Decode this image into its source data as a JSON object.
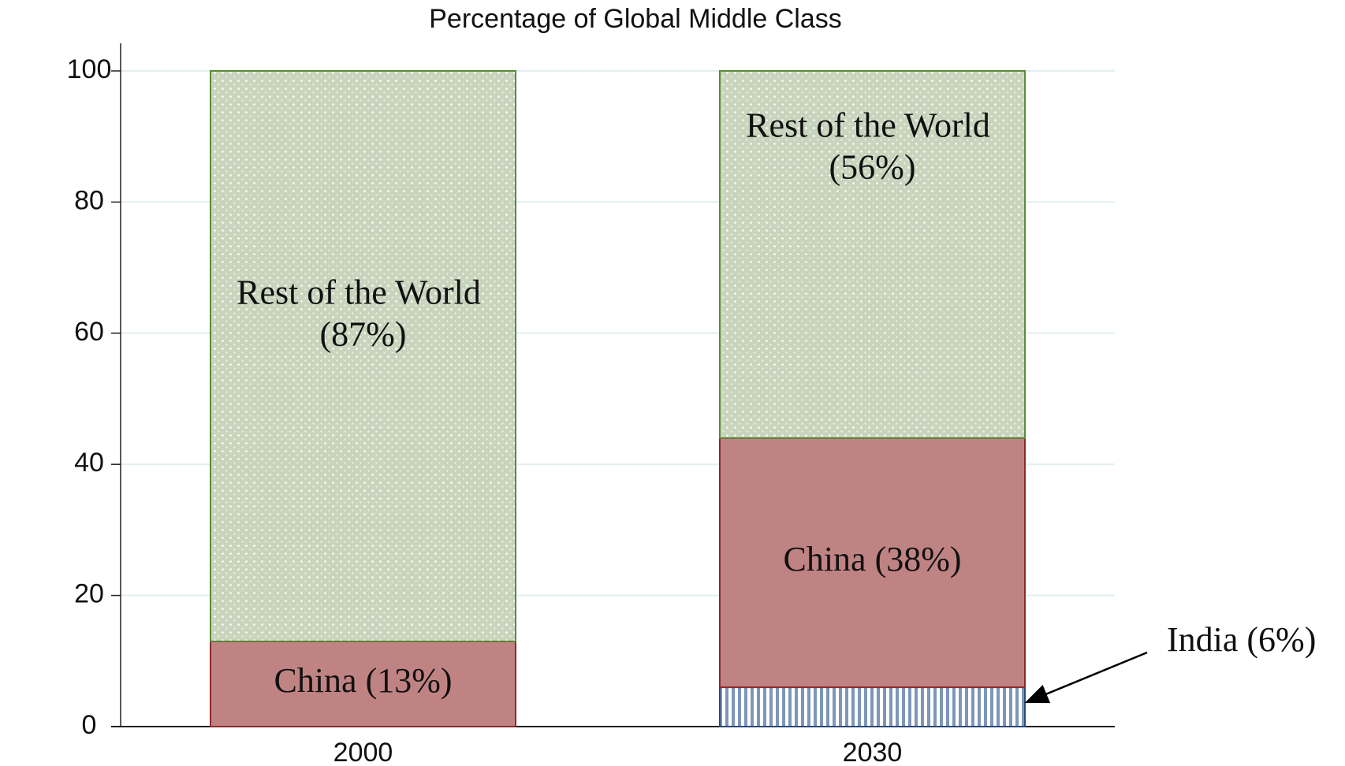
{
  "chart_data": {
    "type": "stacked_bar",
    "title": "Percentage of Global Middle Class",
    "categories": [
      "2000",
      "2030"
    ],
    "series": [
      {
        "color": "#7e96b8",
        "values": [
          null,
          6
        ],
        "value_labels": [
          null,
          "India (6%)"
        ]
      },
      {
        "color": "#c08384",
        "values": [
          13,
          38
        ],
        "value_labels": [
          "China (13%)",
          "China (38%)"
        ]
      },
      {
        "color": "#c9d4bd",
        "values": [
          87,
          56
        ],
        "value_labels": [
          "Rest of the World (87%)",
          "Rest of the World (56%)"
        ]
      }
    ],
    "ylim": [
      0,
      100
    ],
    "yticks": [
      0,
      20,
      40,
      60,
      80,
      100
    ],
    "grid": true
  }
}
